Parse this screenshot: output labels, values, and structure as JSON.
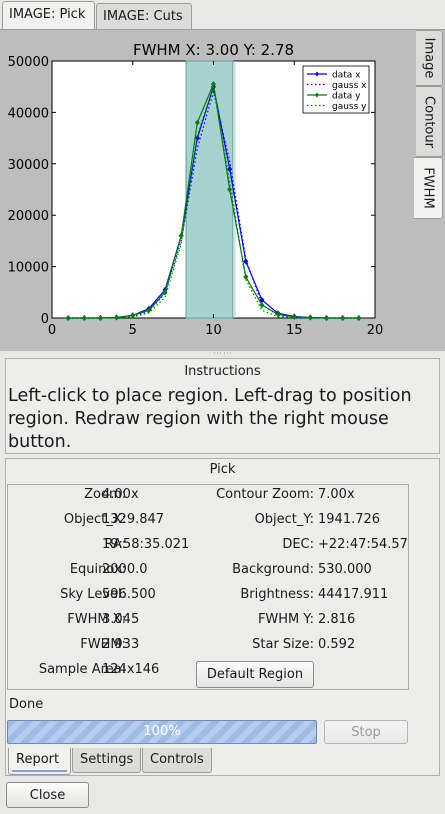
{
  "tabs": {
    "top": [
      {
        "label": "IMAGE: Pick",
        "active": true
      },
      {
        "label": "IMAGE: Cuts",
        "active": false
      }
    ],
    "side": [
      {
        "label": "Image",
        "active": false
      },
      {
        "label": "Contour",
        "active": false
      },
      {
        "label": "FWHM",
        "active": true
      }
    ]
  },
  "chart_data": {
    "type": "line",
    "title": "FWHM X: 3.00  Y: 2.78",
    "xlabel": "",
    "ylabel": "",
    "xlim": [
      0,
      20
    ],
    "ylim": [
      0,
      50000
    ],
    "xticks": [
      "0",
      "5",
      "10",
      "15",
      "20"
    ],
    "yticks": [
      "0",
      "10000",
      "20000",
      "30000",
      "40000",
      "50000"
    ],
    "grid": false,
    "legend_position": "top-right",
    "highlight_band": [
      8.3,
      11.2
    ],
    "x": [
      1,
      2,
      3,
      4,
      5,
      6,
      7,
      8,
      9,
      10,
      11,
      12,
      13,
      14,
      15,
      16,
      17,
      18,
      19
    ],
    "series": [
      {
        "name": "data x",
        "color": "#0000ff",
        "style": "solid-marker",
        "values": [
          0,
          0,
          0,
          100,
          500,
          1800,
          5500,
          16000,
          35000,
          45000,
          29000,
          11000,
          3500,
          900,
          300,
          100,
          0,
          0,
          0
        ]
      },
      {
        "name": "gauss x",
        "color": "#0000ff",
        "style": "dotted",
        "values": [
          0,
          0,
          0,
          50,
          300,
          1300,
          4800,
          15000,
          33000,
          44000,
          30500,
          11500,
          2600,
          500,
          60,
          0,
          0,
          0,
          0
        ]
      },
      {
        "name": "data y",
        "color": "#008000",
        "style": "solid-marker",
        "values": [
          0,
          0,
          0,
          100,
          500,
          1500,
          5000,
          16000,
          38000,
          45500,
          25000,
          8000,
          2500,
          700,
          200,
          100,
          0,
          0,
          0
        ]
      },
      {
        "name": "gauss y",
        "color": "#008000",
        "style": "dotted",
        "values": [
          0,
          0,
          0,
          30,
          200,
          1000,
          4000,
          14500,
          35500,
          45000,
          26500,
          7500,
          1500,
          200,
          20,
          0,
          0,
          0,
          0
        ]
      }
    ]
  },
  "instructions": {
    "title": "Instructions",
    "text": "Left-click to place region.  Left-drag to position region.  Redraw region with the right mouse button."
  },
  "pick": {
    "title": "Pick",
    "fields": {
      "zoom": {
        "label": "Zoom:",
        "value": "4.00x"
      },
      "contour_zoom": {
        "label": "Contour Zoom:",
        "value": "7.00x"
      },
      "object_x": {
        "label": "Object_X:",
        "value": "1329.847"
      },
      "object_y": {
        "label": "Object_Y:",
        "value": "1941.726"
      },
      "ra": {
        "label": "RA:",
        "value": "19:58:35.021"
      },
      "dec": {
        "label": "DEC:",
        "value": "+22:47:54.57"
      },
      "equinox": {
        "label": "Equinox:",
        "value": "2000.0"
      },
      "background": {
        "label": "Background:",
        "value": "530.000"
      },
      "sky_level": {
        "label": "Sky Level:",
        "value": "596.500"
      },
      "brightness": {
        "label": "Brightness:",
        "value": "44417.911"
      },
      "fwhm_x": {
        "label": "FWHM X:",
        "value": "3.045"
      },
      "fwhm_y": {
        "label": "FWHM Y:",
        "value": "2.816"
      },
      "fwhm": {
        "label": "FWHM:",
        "value": "2.933"
      },
      "star_size": {
        "label": "Star Size:",
        "value": "0.592"
      },
      "sample_area": {
        "label": "Sample Area:",
        "value": "124x146"
      }
    },
    "default_region_label": "Default Region",
    "status": "Done",
    "progress": {
      "percent": 100,
      "label": "100%"
    },
    "stop_label": "Stop"
  },
  "bottom_tabs": [
    {
      "label": "Report",
      "active": true
    },
    {
      "label": "Settings",
      "active": false
    },
    {
      "label": "Controls",
      "active": false
    }
  ],
  "close_label": "Close"
}
